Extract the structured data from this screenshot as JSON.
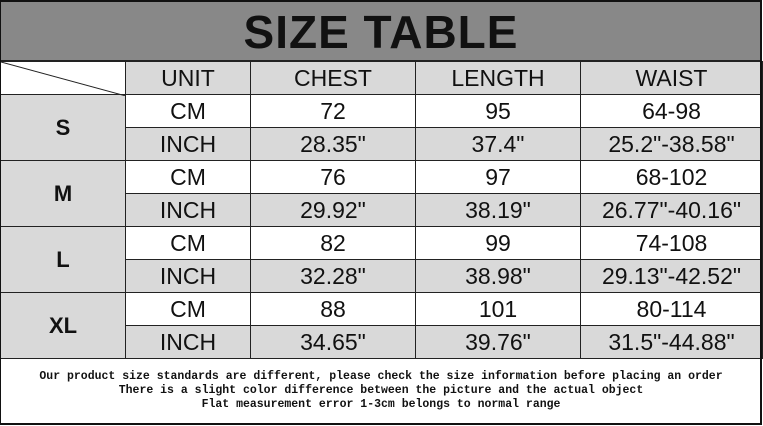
{
  "title": "SIZE TABLE",
  "headers": [
    "UNIT",
    "CHEST",
    "LENGTH",
    "WAIST"
  ],
  "sizes": [
    {
      "size": "S",
      "rows": [
        {
          "unit": "CM",
          "chest": "72",
          "length": "95",
          "waist": "64-98"
        },
        {
          "unit": "INCH",
          "chest": "28.35\"",
          "length": "37.4\"",
          "waist": "25.2\"-38.58\""
        }
      ]
    },
    {
      "size": "M",
      "rows": [
        {
          "unit": "CM",
          "chest": "76",
          "length": "97",
          "waist": "68-102"
        },
        {
          "unit": "INCH",
          "chest": "29.92\"",
          "length": "38.19\"",
          "waist": "26.77\"-40.16\""
        }
      ]
    },
    {
      "size": "L",
      "rows": [
        {
          "unit": "CM",
          "chest": "82",
          "length": "99",
          "waist": "74-108"
        },
        {
          "unit": "INCH",
          "chest": "32.28\"",
          "length": "38.98\"",
          "waist": "29.13\"-42.52\""
        }
      ]
    },
    {
      "size": "XL",
      "rows": [
        {
          "unit": "CM",
          "chest": "88",
          "length": "101",
          "waist": "80-114"
        },
        {
          "unit": "INCH",
          "chest": "34.65\"",
          "length": "39.76\"",
          "waist": "31.5\"-44.88\""
        }
      ]
    }
  ],
  "notes": [
    "Our product size standards are different, please check the size information before placing an order",
    "There is a slight color difference between the picture and the actual object",
    "Flat measurement error 1-3cm belongs to normal range"
  ],
  "colors": {
    "title_band": "#888888",
    "cell_gray": "#d9d9d9"
  }
}
